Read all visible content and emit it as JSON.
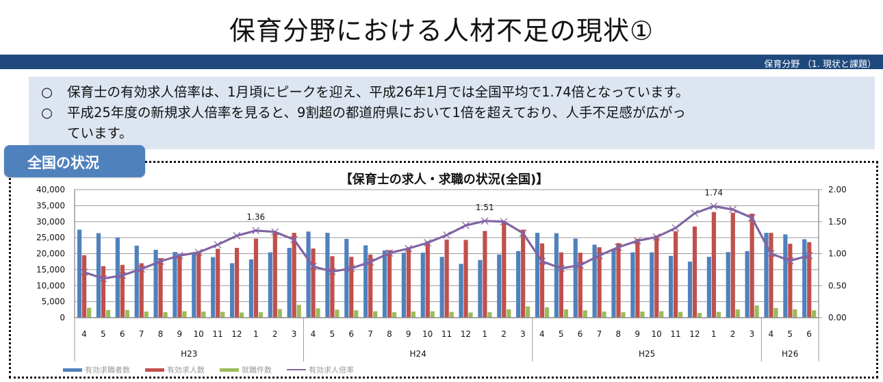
{
  "page": {
    "title": "保育分野における人材不足の現状①",
    "header_label": "保育分野 （1. 現状と課題）"
  },
  "summary": {
    "bullet_glyph": "○",
    "lines": [
      "保育士の有効求人倍率は、1月頃にピークを迎え、平成26年1月では全国平均で1.74倍となっています。",
      "平成25年度の新規求人倍率を見ると、9割超の都道府県において1倍を超えており、人手不足感が広がっ",
      "ています。"
    ]
  },
  "section_tab": {
    "label": "全国の状況"
  },
  "colors": {
    "header_bar": "#1f497d",
    "summary_bg": "#dde5f1",
    "tab_bg": "#4f81bd",
    "job_seekers": "#4f81bd",
    "job_offers": "#c0504d",
    "placements": "#9bbb59",
    "ratio": "#8064a2"
  },
  "chart_data": {
    "type": "bar",
    "title": "【保育士の求人・求職の状況(全国)】",
    "xlabel": "",
    "ylabel": "",
    "ylim": [
      0,
      40000
    ],
    "y2lim": [
      0,
      2.0
    ],
    "yticks": [
      "40,000",
      "35,000",
      "30,000",
      "25,000",
      "20,000",
      "15,000",
      "10,000",
      "5,000",
      "0"
    ],
    "y2ticks": [
      "2.00",
      "1.50",
      "1.00",
      "0.50",
      "0.00"
    ],
    "grid": true,
    "legend_position": "bottom",
    "categories": [
      "4",
      "5",
      "6",
      "7",
      "8",
      "9",
      "10",
      "11",
      "12",
      "1",
      "2",
      "3",
      "4",
      "5",
      "6",
      "7",
      "8",
      "9",
      "10",
      "11",
      "12",
      "1",
      "2",
      "3",
      "4",
      "5",
      "6",
      "7",
      "8",
      "9",
      "10",
      "11",
      "12",
      "1",
      "2",
      "3",
      "4",
      "5",
      "6"
    ],
    "groups": [
      {
        "label": "H23",
        "count": 12
      },
      {
        "label": "H24",
        "count": 12
      },
      {
        "label": "H25",
        "count": 12
      },
      {
        "label": "H26",
        "count": 3
      }
    ],
    "series": [
      {
        "name": "有効求職者数",
        "type": "bar",
        "axis": "left",
        "values": [
          27500,
          26400,
          25000,
          22500,
          21200,
          20500,
          20200,
          18900,
          17000,
          18200,
          20400,
          21800,
          26900,
          26500,
          24600,
          22600,
          21000,
          20300,
          20300,
          19000,
          16800,
          18000,
          19700,
          20800,
          26500,
          26400,
          24700,
          22800,
          21200,
          20400,
          20400,
          19300,
          17500,
          19000,
          20500,
          20800,
          26500,
          26000,
          24500
        ]
      },
      {
        "name": "有効求人数",
        "type": "bar",
        "axis": "left",
        "values": [
          19500,
          16100,
          16500,
          17000,
          18600,
          19800,
          20600,
          21500,
          21800,
          24700,
          26800,
          26500,
          21600,
          19200,
          19000,
          19700,
          21100,
          22000,
          23900,
          24400,
          24300,
          27100,
          29700,
          27500,
          23200,
          20400,
          20300,
          22000,
          23300,
          24600,
          25700,
          27000,
          28500,
          33000,
          32800,
          32500,
          26500,
          23100,
          23600
        ]
      },
      {
        "name": "就職件数",
        "type": "bar",
        "axis": "left",
        "values": [
          3100,
          2400,
          2400,
          1900,
          1700,
          2000,
          1900,
          1800,
          1600,
          1700,
          2700,
          4000,
          2900,
          2500,
          2300,
          2000,
          1700,
          1900,
          2000,
          1800,
          1600,
          1700,
          2600,
          3500,
          3200,
          2600,
          2300,
          1900,
          1700,
          1900,
          2000,
          1800,
          1500,
          1800,
          2600,
          3800,
          3000,
          2600,
          2300
        ]
      },
      {
        "name": "有効求人倍率",
        "type": "line",
        "axis": "right",
        "values": [
          0.71,
          0.61,
          0.66,
          0.76,
          0.88,
          0.97,
          1.02,
          1.14,
          1.28,
          1.36,
          1.34,
          1.22,
          0.8,
          0.72,
          0.77,
          0.87,
          1.01,
          1.08,
          1.17,
          1.29,
          1.44,
          1.51,
          1.5,
          1.32,
          0.88,
          0.77,
          0.82,
          0.97,
          1.1,
          1.2,
          1.26,
          1.4,
          1.63,
          1.74,
          1.69,
          1.56,
          1.0,
          0.89,
          0.97
        ]
      }
    ],
    "annotations": [
      {
        "index": 9,
        "text": "1.36"
      },
      {
        "index": 21,
        "text": "1.51"
      },
      {
        "index": 33,
        "text": "1.74"
      }
    ]
  }
}
